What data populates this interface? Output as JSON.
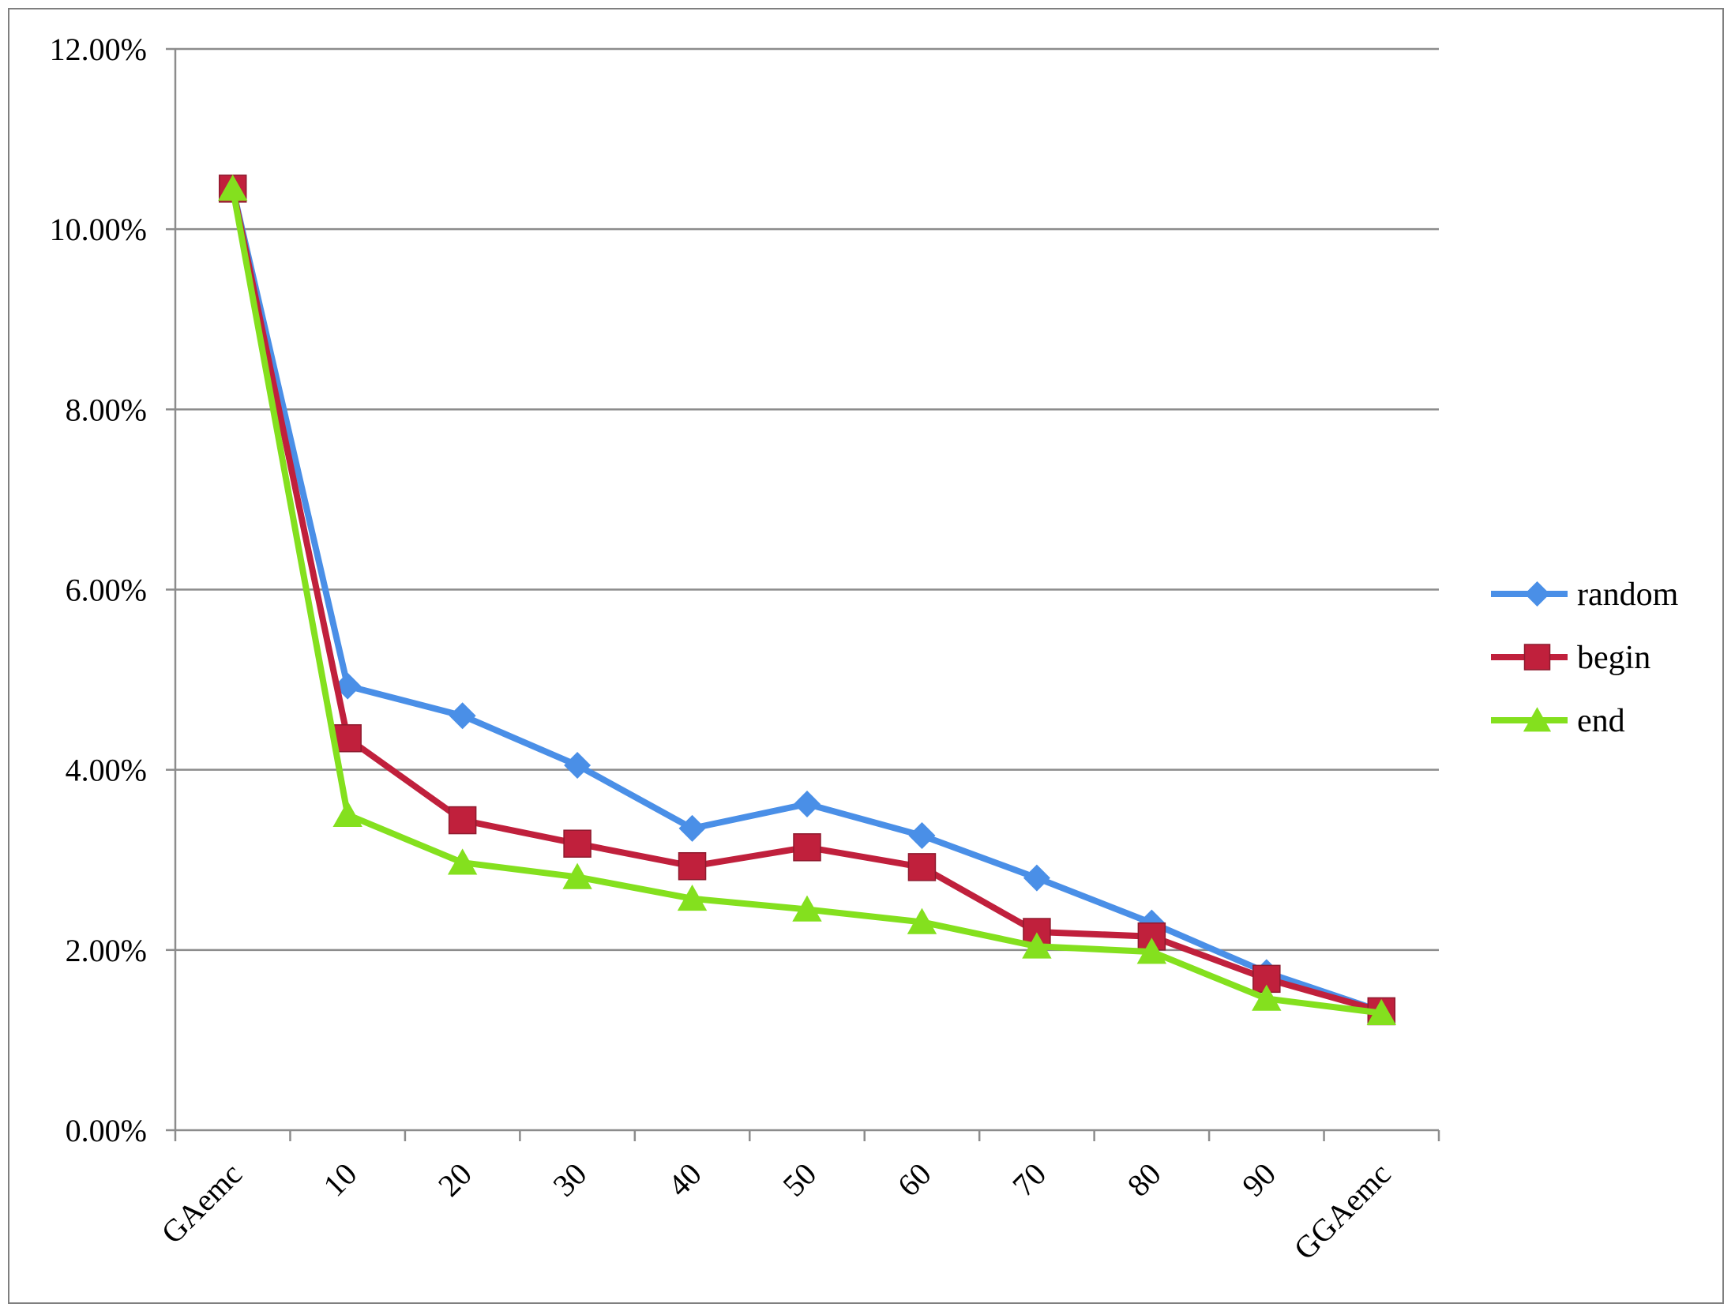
{
  "chart_data": {
    "type": "line",
    "title": "",
    "xlabel": "",
    "ylabel": "",
    "categories": [
      "GAemc",
      "10",
      "20",
      "30",
      "40",
      "50",
      "60",
      "70",
      "80",
      "90",
      "GGAemc"
    ],
    "y_ticks": [
      "0.00%",
      "2.00%",
      "4.00%",
      "6.00%",
      "8.00%",
      "10.00%",
      "12.00%"
    ],
    "ylim": [
      0,
      12
    ],
    "y_unit": "percent",
    "grid": "horizontal",
    "legend_position": "right",
    "series": [
      {
        "name": "random",
        "color": "#4a8fe7",
        "marker": "diamond",
        "values": [
          10.45,
          4.93,
          4.6,
          4.05,
          3.35,
          3.62,
          3.27,
          2.8,
          2.3,
          1.75,
          1.32
        ]
      },
      {
        "name": "begin",
        "color": "#c0203c",
        "marker": "square",
        "values": [
          10.45,
          4.35,
          3.44,
          3.18,
          2.93,
          3.14,
          2.92,
          2.2,
          2.15,
          1.68,
          1.32
        ]
      },
      {
        "name": "end",
        "color": "#84e01e",
        "marker": "triangle",
        "values": [
          10.45,
          3.5,
          2.97,
          2.81,
          2.57,
          2.45,
          2.31,
          2.04,
          1.98,
          1.46,
          1.3
        ]
      }
    ]
  }
}
